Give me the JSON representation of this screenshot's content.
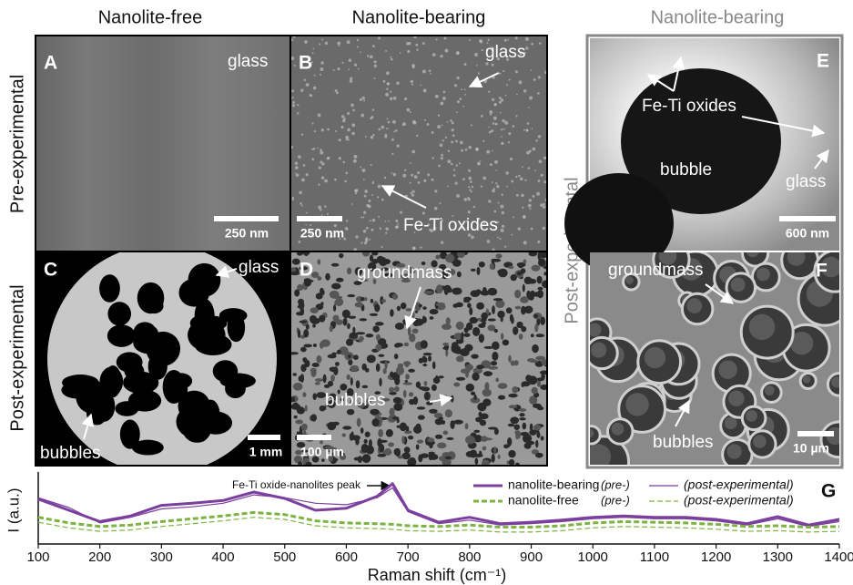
{
  "columns": [
    "Nanolite-free",
    "Nanolite-bearing",
    "Nanolite-bearing"
  ],
  "rows": [
    "Pre-experimental",
    "Post-experimental",
    "Post-experimental"
  ],
  "panels": [
    {
      "label": "A",
      "texts": [
        "glass"
      ],
      "scale": "250 nm"
    },
    {
      "label": "B",
      "texts": [
        "glass",
        "Fe-Ti oxides"
      ],
      "scale": "250 nm"
    },
    {
      "label": "C",
      "texts": [
        "glass",
        "bubbles"
      ],
      "scale": "1 mm"
    },
    {
      "label": "D",
      "texts": [
        "groundmass",
        "bubbles"
      ],
      "scale": "100 µm"
    },
    {
      "label": "E",
      "texts": [
        "Fe-Ti oxides",
        "bubble",
        "glass"
      ],
      "scale": "600 nm"
    },
    {
      "label": "F",
      "texts": [
        "groundmass",
        "bubbles"
      ],
      "scale": "10 µm"
    }
  ],
  "chart_data": {
    "type": "line",
    "label": "G",
    "annotation": "Fe-Ti oxide-nanolites peak",
    "xlabel": "Raman shift (cm⁻¹)",
    "ylabel": "I (a.u.)",
    "x": [
      100,
      150,
      200,
      250,
      300,
      350,
      400,
      450,
      500,
      550,
      600,
      650,
      675,
      700,
      750,
      800,
      850,
      900,
      950,
      1000,
      1050,
      1100,
      1150,
      1200,
      1250,
      1300,
      1350,
      1400
    ],
    "xlim": [
      100,
      1400
    ],
    "xticks": [
      100,
      200,
      300,
      400,
      500,
      600,
      700,
      800,
      900,
      1000,
      1100,
      1200,
      1300,
      1400
    ],
    "ylim": [
      0,
      100
    ],
    "series": [
      {
        "name": "nanolite-bearing",
        "note": "(pre-)",
        "color": "#7b3f9e",
        "width": 3,
        "dash": false,
        "values": [
          64,
          48,
          32,
          40,
          55,
          58,
          62,
          74,
          65,
          48,
          51,
          68,
          86,
          48,
          31,
          38,
          29,
          31,
          34,
          38,
          40,
          38,
          38,
          35,
          29,
          39,
          27,
          35
        ]
      },
      {
        "name": "(post-experimental)",
        "color": "#7b3f9e",
        "width": 1.2,
        "dash": false,
        "values": [
          66,
          52,
          30,
          38,
          50,
          53,
          58,
          70,
          66,
          58,
          56,
          66,
          80,
          46,
          29,
          34,
          27,
          29,
          32,
          36,
          38,
          36,
          36,
          33,
          27,
          36,
          25,
          32
        ]
      },
      {
        "name": "nanolite-free",
        "note": "(pre-)",
        "color": "#7cb342",
        "width": 3,
        "dash": true,
        "values": [
          38,
          30,
          25,
          27,
          32,
          36,
          40,
          45,
          42,
          33,
          30,
          29,
          28,
          26,
          25,
          27,
          24,
          24,
          26,
          30,
          32,
          31,
          30,
          28,
          25,
          26,
          24,
          25
        ]
      },
      {
        "name": "(post-experimental)",
        "color": "#7cb342",
        "width": 1.2,
        "dash": true,
        "values": [
          31,
          23,
          18,
          20,
          25,
          29,
          33,
          38,
          35,
          26,
          23,
          22,
          21,
          19,
          18,
          20,
          17,
          17,
          19,
          23,
          25,
          24,
          23,
          21,
          18,
          19,
          17,
          18
        ]
      }
    ]
  }
}
